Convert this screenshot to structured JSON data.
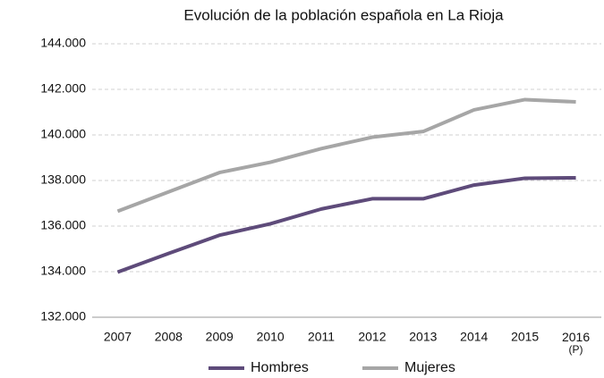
{
  "chart_data": {
    "type": "line",
    "title": "Evolución de la población española en La Rioja",
    "categories": [
      "2007",
      "2008",
      "2009",
      "2010",
      "2011",
      "2012",
      "2013",
      "2014",
      "2015",
      "2016\n(P)"
    ],
    "series": [
      {
        "name": "Hombres",
        "color": "#5e4b7a",
        "values": [
          133980,
          134800,
          135600,
          136100,
          136750,
          137200,
          137200,
          137800,
          138100,
          138120
        ]
      },
      {
        "name": "Mujeres",
        "color": "#a6a6a6",
        "values": [
          136650,
          137500,
          138350,
          138800,
          139400,
          139900,
          140150,
          141100,
          141550,
          141450
        ]
      }
    ],
    "ylim": [
      132000,
      144000
    ],
    "yticks": [
      {
        "value": 132000,
        "label": "132.000"
      },
      {
        "value": 134000,
        "label": "134.000"
      },
      {
        "value": 136000,
        "label": "136.000"
      },
      {
        "value": 138000,
        "label": "138.000"
      },
      {
        "value": 140000,
        "label": "140.000"
      },
      {
        "value": 142000,
        "label": "142.000"
      },
      {
        "value": 144000,
        "label": "144.000"
      }
    ],
    "grid": true,
    "legend": "bottom"
  }
}
